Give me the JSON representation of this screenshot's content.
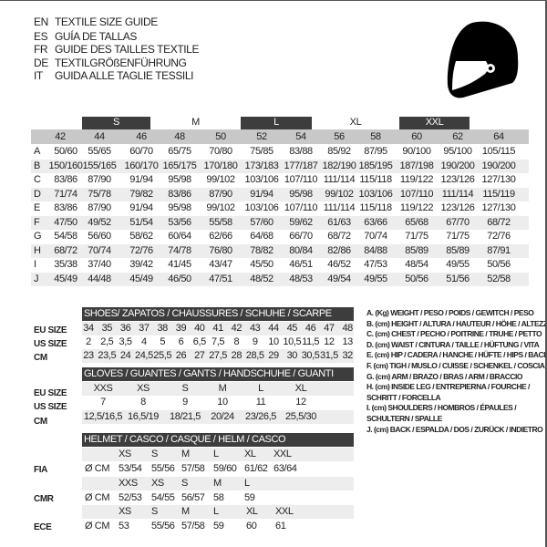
{
  "titles": [
    {
      "lang": "EN",
      "text": "TEXTILE SIZE GUIDE"
    },
    {
      "lang": "ES",
      "text": "GUÍA DE TALLAS"
    },
    {
      "lang": "FR",
      "text": "GUIDE DES TAILLES TEXTILE"
    },
    {
      "lang": "DE",
      "text": "TEXTILGRÖßENFÜHRUNG"
    },
    {
      "lang": "IT",
      "text": "GUIDA ALLE TAGLIE TESSILI"
    }
  ],
  "icon": "helmet-icon",
  "textile": {
    "size_labels": [
      "S",
      "M",
      "L",
      "XL",
      "XXL"
    ],
    "eu_sizes": [
      "42",
      "44",
      "46",
      "48",
      "50",
      "52",
      "54",
      "56",
      "58",
      "60",
      "62",
      "64"
    ],
    "rows": [
      {
        "key": "A",
        "values": [
          "50/60",
          "55/65",
          "60/70",
          "65/75",
          "70/80",
          "75/85",
          "83/88",
          "85/92",
          "87/95",
          "90/100",
          "95/100",
          "105/115"
        ]
      },
      {
        "key": "B",
        "values": [
          "150/160",
          "155/165",
          "160/170",
          "165/175",
          "170/180",
          "173/183",
          "177/187",
          "182/190",
          "185/195",
          "187/198",
          "190/200",
          "190/200"
        ]
      },
      {
        "key": "C",
        "values": [
          "83/86",
          "87/90",
          "91/94",
          "95/98",
          "99/102",
          "103/106",
          "107/110",
          "111/114",
          "115/118",
          "119/122",
          "123/126",
          "127/130"
        ]
      },
      {
        "key": "D",
        "values": [
          "71/74",
          "75/78",
          "79/82",
          "83/86",
          "87/90",
          "91/94",
          "95/98",
          "99/102",
          "103/106",
          "107/110",
          "111/114",
          "115/119"
        ]
      },
      {
        "key": "E",
        "values": [
          "83/86",
          "87/90",
          "91/94",
          "95/98",
          "99/102",
          "103/106",
          "107/110",
          "111/114",
          "115/118",
          "119/122",
          "123/126",
          "127/130"
        ]
      },
      {
        "key": "F",
        "values": [
          "47/50",
          "49/52",
          "51/54",
          "53/56",
          "55/58",
          "57/60",
          "59/62",
          "61/63",
          "63/66",
          "65/68",
          "67/70",
          "68/72"
        ]
      },
      {
        "key": "G",
        "values": [
          "54/58",
          "56/60",
          "58/62",
          "60/64",
          "62/66",
          "64/68",
          "66/70",
          "68/72",
          "70/74",
          "71/75",
          "71/75",
          "72/76"
        ]
      },
      {
        "key": "H",
        "values": [
          "68/72",
          "70/74",
          "72/76",
          "74/78",
          "76/80",
          "78/82",
          "80/84",
          "82/86",
          "84/88",
          "85/89",
          "85/89",
          "87/91"
        ]
      },
      {
        "key": "I",
        "values": [
          "35/38",
          "37/40",
          "39/42",
          "41/45",
          "43/47",
          "45/50",
          "46/51",
          "46/52",
          "47/53",
          "48/54",
          "49/55",
          "50/56"
        ]
      },
      {
        "key": "J",
        "values": [
          "45/49",
          "44/48",
          "45/49",
          "46/50",
          "47/51",
          "48/52",
          "48/53",
          "49/54",
          "49/55",
          "50/56",
          "51/56",
          "52/58"
        ]
      }
    ]
  },
  "shoes": {
    "header": "SHOES/ ZAPATOS / CHAUSSURES / SCHUHE / SCARPE",
    "rows": [
      {
        "label": "EU SIZE",
        "values": [
          "34",
          "35",
          "36",
          "37",
          "38",
          "39",
          "40",
          "41",
          "42",
          "43",
          "44",
          "45",
          "46",
          "47",
          "48"
        ]
      },
      {
        "label": "US SIZE",
        "values": [
          "2",
          "2,5",
          "3,5",
          "4",
          "5",
          "6",
          "6,5",
          "7,5",
          "8",
          "9",
          "10",
          "10,5",
          "11,5",
          "12",
          "13"
        ]
      },
      {
        "label": "CM",
        "values": [
          "23",
          "23,5",
          "24",
          "24,5",
          "25,5",
          "26",
          "27",
          "27,5",
          "28",
          "28,5",
          "29",
          "30",
          "30,5",
          "31,5",
          "32"
        ]
      }
    ]
  },
  "gloves": {
    "header": "GLOVES / GUANTES / GANTS / HANDSCHUHE / GUANTI",
    "rows": [
      {
        "label": "EU SIZE",
        "values": [
          "XXS",
          "XS",
          "S",
          "M",
          "L",
          "XL"
        ]
      },
      {
        "label": "US SIZE",
        "values": [
          "7",
          "8",
          "9",
          "10",
          "11",
          "12"
        ]
      },
      {
        "label": "CM",
        "values": [
          "12,5/16,5",
          "16,5/19",
          "18/21,5",
          "20/24",
          "23/26,5",
          "25,5/30"
        ]
      }
    ]
  },
  "helmet": {
    "header": "HELMET / CASCO / CASQUE / HELM / CASCO",
    "unit": "Ø CM",
    "groups": [
      {
        "label": "FIA",
        "sizes": [
          "XS",
          "S",
          "M",
          "L",
          "XL",
          "XXL"
        ],
        "values": [
          "53/54",
          "55/56",
          "57/58",
          "59/60",
          "61/62",
          "63/64"
        ]
      },
      {
        "label": "CMR",
        "sizes": [
          "XXS",
          "XS",
          "S",
          "M",
          "L"
        ],
        "values": [
          "52/53",
          "54/55",
          "56/57",
          "58",
          "59"
        ]
      },
      {
        "label": "ECE",
        "sizes": [
          "XS",
          "S",
          "M",
          "L",
          "XL",
          "XXL"
        ],
        "values": [
          "53",
          "55/56",
          "57/58",
          "59",
          "60",
          "61"
        ]
      }
    ]
  },
  "legend": [
    "A. (Kg) WEIGHT / PESO / POIDS / GEWITCH / PESO",
    "B. (cm) HEIGHT / ALTURA / HAUTEUR / HÖHE / ALTEZZA",
    "C. (cm) CHEST / PECHO / POITRINE / TRUHE / PETTO",
    "D. (cm) WAIST / CINTURA / TAILLE / HÜFTUNG / VITA",
    "E. (cm) HIP / CADERA / HANCHE / HÜFTE / HIPS /  BACINO",
    "F.  (cm) TIGH / MUSLO / CUISSE / SCHENKEL / COSCIA",
    "G. (cm) ARM  / BRAZO / BRAS / ARM / BRACCIO",
    "H. (cm) INSIDE LEG / ENTREPIERNA / FOURCHE /",
    "SCHRITT / FORCELLA",
    "I.  (cm) SHOULDERS / HOMBROS / ÉPAULES /",
    "SCHULTERN / SPALLE",
    "J. (cm) BACK / ESPALDA / DOS / ZURÜCK / INDIETRO"
  ]
}
